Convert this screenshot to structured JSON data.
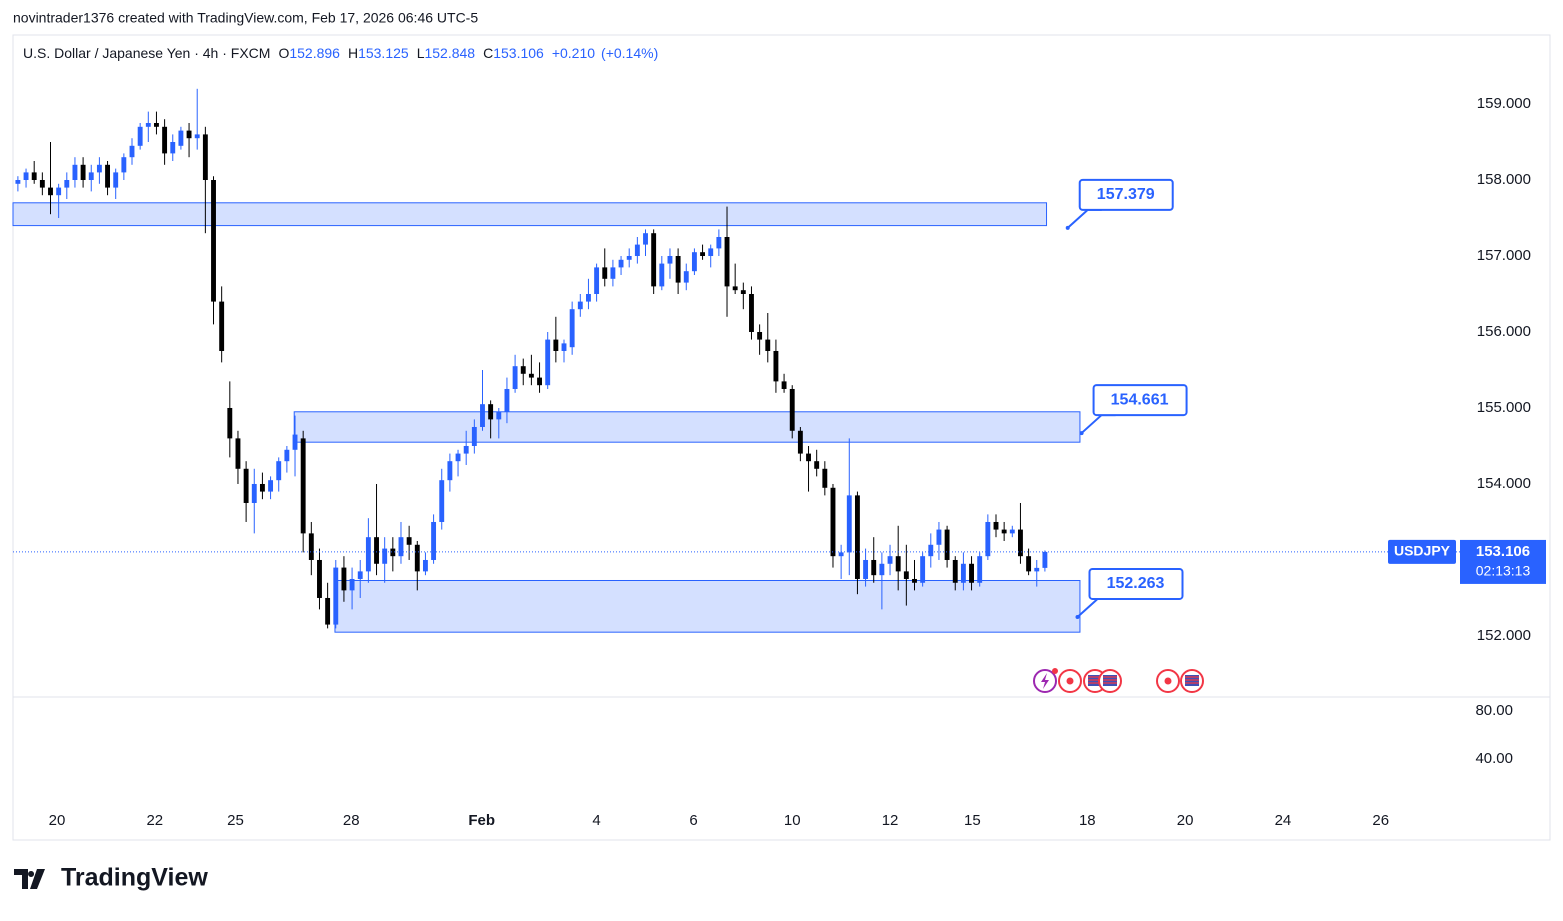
{
  "header": {
    "text": "novintrader1376 created with TradingView.com, Feb 17, 2026 06:46 UTC-5"
  },
  "footer": {
    "logo": "TradingView"
  },
  "chart_data": {
    "type": "candlestick",
    "legend": {
      "symbol": "U.S. Dollar / Japanese Yen · 4h · FXCM",
      "open_label": "O",
      "open": 152.896,
      "high_label": "H",
      "high": 153.125,
      "low_label": "L",
      "low": 152.848,
      "close_label": "C",
      "close": 153.106,
      "change": {
        "value": 0.21,
        "label": "+0.210"
      },
      "change_pct": {
        "value": 0.14,
        "label": "(+0.14%)"
      }
    },
    "up_color": "#2962ff",
    "down_color": "#000000",
    "xlim": [
      -0.6,
      175.7
    ],
    "xticks": [
      {
        "value": 4.8,
        "label": "20"
      },
      {
        "value": 16.8,
        "label": "22"
      },
      {
        "value": 26.7,
        "label": "25"
      },
      {
        "value": 40.9,
        "label": "28"
      },
      {
        "value": 56.9,
        "label": "Feb"
      },
      {
        "value": 71.0,
        "label": "4"
      },
      {
        "value": 82.9,
        "label": "6"
      },
      {
        "value": 95.0,
        "label": "10"
      },
      {
        "value": 107.0,
        "label": "12"
      },
      {
        "value": 117.1,
        "label": "15"
      },
      {
        "value": 131.2,
        "label": "18"
      },
      {
        "value": 143.2,
        "label": "20"
      },
      {
        "value": 155.2,
        "label": "24"
      },
      {
        "value": 167.2,
        "label": "26"
      }
    ],
    "ylim": [
      151.197,
      159.908
    ],
    "yticks": [
      {
        "value": 152,
        "label": "152.000"
      },
      {
        "value": 153,
        "label": "153.000"
      },
      {
        "value": 154,
        "label": "154.000"
      },
      {
        "value": 155,
        "label": "155.000"
      },
      {
        "value": 156,
        "label": "156.000"
      },
      {
        "value": 157,
        "label": "157.000"
      },
      {
        "value": 158,
        "label": "158.000"
      },
      {
        "value": 159,
        "label": "159.000"
      }
    ],
    "price_tag": {
      "symbol": "USDJPY",
      "price": 153.106,
      "countdown": "02:13:13"
    },
    "zones": [
      {
        "low": 157.4,
        "high": 157.7,
        "x_start": -0.6,
        "x_end": 126.2,
        "label": "157.379",
        "point": 157.37,
        "point_x": 128.8
      },
      {
        "low": 154.55,
        "high": 154.95,
        "x_start": 33.9,
        "x_end": 130.3,
        "label": "154.661",
        "point": 154.67,
        "point_x": 130.5
      },
      {
        "low": 152.05,
        "high": 152.73,
        "x_start": 38.9,
        "x_end": 130.3,
        "label": "152.263",
        "point": 152.25,
        "point_x": 130.0
      }
    ],
    "lower_pane": {
      "ylim": [
        1.67,
        91.67
      ],
      "yticks": [
        {
          "value": 80,
          "label": "80.00"
        },
        {
          "value": 40,
          "label": "40.00"
        }
      ]
    },
    "candles": [
      [
        157.95,
        158.05,
        157.85,
        158.0
      ],
      [
        158.0,
        158.15,
        157.9,
        158.1
      ],
      [
        158.1,
        158.25,
        157.95,
        158.0
      ],
      [
        158.0,
        158.1,
        157.8,
        157.9
      ],
      [
        157.9,
        158.5,
        157.55,
        157.8
      ],
      [
        157.8,
        157.95,
        157.5,
        157.9
      ],
      [
        157.9,
        158.1,
        157.75,
        158.0
      ],
      [
        158.0,
        158.3,
        157.9,
        158.2
      ],
      [
        158.2,
        158.3,
        157.9,
        158.0
      ],
      [
        158.0,
        158.2,
        157.85,
        158.1
      ],
      [
        158.1,
        158.3,
        157.95,
        158.2
      ],
      [
        158.2,
        158.25,
        157.8,
        157.9
      ],
      [
        157.9,
        158.15,
        157.75,
        158.1
      ],
      [
        158.1,
        158.35,
        158.0,
        158.3
      ],
      [
        158.3,
        158.55,
        158.2,
        158.45
      ],
      [
        158.45,
        158.75,
        158.4,
        158.7
      ],
      [
        158.7,
        158.9,
        158.5,
        158.75
      ],
      [
        158.75,
        158.9,
        158.6,
        158.7
      ],
      [
        158.7,
        158.8,
        158.2,
        158.35
      ],
      [
        158.35,
        158.6,
        158.25,
        158.5
      ],
      [
        158.45,
        158.7,
        158.4,
        158.65
      ],
      [
        158.65,
        158.75,
        158.3,
        158.55
      ],
      [
        158.55,
        159.2,
        158.4,
        158.6
      ],
      [
        158.6,
        158.7,
        157.3,
        158.0
      ],
      [
        158.0,
        158.05,
        156.1,
        156.4
      ],
      [
        156.4,
        156.6,
        155.6,
        155.75
      ],
      [
        155.0,
        155.35,
        154.35,
        154.6
      ],
      [
        154.6,
        154.7,
        154.0,
        154.2
      ],
      [
        154.2,
        154.3,
        153.5,
        153.75
      ],
      [
        153.75,
        154.2,
        153.35,
        154.0
      ],
      [
        154.0,
        154.15,
        153.8,
        153.9
      ],
      [
        153.9,
        154.1,
        153.8,
        154.05
      ],
      [
        154.05,
        154.35,
        153.9,
        154.3
      ],
      [
        154.3,
        154.5,
        154.15,
        154.45
      ],
      [
        154.45,
        154.9,
        154.1,
        154.65
      ],
      [
        154.6,
        154.7,
        153.1,
        153.35
      ],
      [
        153.35,
        153.5,
        152.8,
        153.0
      ],
      [
        153.0,
        153.15,
        152.35,
        152.5
      ],
      [
        152.5,
        152.7,
        152.1,
        152.15
      ],
      [
        152.15,
        153.0,
        152.1,
        152.9
      ],
      [
        152.9,
        153.05,
        152.45,
        152.6
      ],
      [
        152.6,
        152.9,
        152.35,
        152.75
      ],
      [
        152.75,
        153.0,
        152.5,
        152.85
      ],
      [
        152.85,
        153.55,
        152.7,
        153.3
      ],
      [
        153.3,
        154.0,
        152.8,
        152.95
      ],
      [
        152.95,
        153.3,
        152.7,
        153.15
      ],
      [
        153.15,
        153.3,
        152.85,
        153.05
      ],
      [
        153.05,
        153.5,
        152.95,
        153.3
      ],
      [
        153.3,
        153.45,
        153.0,
        153.2
      ],
      [
        153.2,
        153.25,
        152.6,
        152.85
      ],
      [
        152.85,
        153.1,
        152.8,
        153.0
      ],
      [
        153.0,
        153.6,
        152.95,
        153.5
      ],
      [
        153.5,
        154.2,
        153.4,
        154.05
      ],
      [
        154.05,
        154.4,
        153.9,
        154.3
      ],
      [
        154.3,
        154.45,
        154.1,
        154.4
      ],
      [
        154.4,
        154.7,
        154.25,
        154.5
      ],
      [
        154.5,
        154.85,
        154.4,
        154.75
      ],
      [
        154.75,
        155.5,
        154.7,
        155.05
      ],
      [
        155.05,
        155.1,
        154.6,
        154.85
      ],
      [
        154.85,
        155.0,
        154.6,
        154.95
      ],
      [
        154.95,
        155.4,
        154.8,
        155.25
      ],
      [
        155.25,
        155.7,
        155.2,
        155.55
      ],
      [
        155.55,
        155.65,
        155.3,
        155.45
      ],
      [
        155.45,
        155.7,
        155.3,
        155.4
      ],
      [
        155.4,
        155.6,
        155.2,
        155.3
      ],
      [
        155.3,
        156.0,
        155.25,
        155.9
      ],
      [
        155.9,
        156.2,
        155.6,
        155.75
      ],
      [
        155.75,
        155.9,
        155.6,
        155.85
      ],
      [
        155.8,
        156.4,
        155.7,
        156.3
      ],
      [
        156.3,
        156.5,
        156.2,
        156.4
      ],
      [
        156.4,
        156.7,
        156.3,
        156.5
      ],
      [
        156.5,
        156.9,
        156.4,
        156.85
      ],
      [
        156.85,
        157.1,
        156.6,
        156.7
      ],
      [
        156.7,
        156.95,
        156.6,
        156.85
      ],
      [
        156.85,
        157.0,
        156.75,
        156.95
      ],
      [
        156.95,
        157.1,
        156.85,
        157.0
      ],
      [
        157.0,
        157.25,
        156.9,
        157.15
      ],
      [
        157.15,
        157.35,
        157.0,
        157.3
      ],
      [
        157.3,
        157.35,
        156.5,
        156.6
      ],
      [
        156.6,
        157.0,
        156.55,
        156.9
      ],
      [
        156.9,
        157.1,
        156.7,
        157.0
      ],
      [
        157.0,
        157.1,
        156.5,
        156.65
      ],
      [
        156.65,
        156.9,
        156.55,
        156.8
      ],
      [
        156.8,
        157.1,
        156.75,
        157.05
      ],
      [
        157.05,
        157.15,
        156.95,
        157.0
      ],
      [
        157.0,
        157.15,
        156.85,
        157.1
      ],
      [
        157.1,
        157.35,
        157.0,
        157.25
      ],
      [
        157.25,
        157.65,
        156.2,
        156.6
      ],
      [
        156.6,
        156.9,
        156.5,
        156.55
      ],
      [
        156.55,
        156.65,
        156.3,
        156.5
      ],
      [
        156.5,
        156.6,
        155.9,
        156.0
      ],
      [
        156.0,
        156.1,
        155.7,
        155.9
      ],
      [
        155.9,
        156.25,
        155.6,
        155.75
      ],
      [
        155.75,
        155.9,
        155.2,
        155.35
      ],
      [
        155.35,
        155.45,
        155.2,
        155.25
      ],
      [
        155.25,
        155.3,
        154.6,
        154.7
      ],
      [
        154.7,
        154.75,
        154.3,
        154.4
      ],
      [
        154.4,
        154.5,
        153.9,
        154.3
      ],
      [
        154.3,
        154.45,
        154.1,
        154.2
      ],
      [
        154.2,
        154.3,
        153.85,
        153.95
      ],
      [
        153.95,
        154.0,
        152.9,
        153.05
      ],
      [
        153.05,
        153.2,
        152.75,
        153.1
      ],
      [
        153.1,
        154.6,
        152.8,
        153.85
      ],
      [
        153.85,
        153.9,
        152.55,
        152.75
      ],
      [
        152.75,
        153.15,
        152.65,
        153.0
      ],
      [
        153.0,
        153.3,
        152.7,
        152.8
      ],
      [
        152.8,
        153.1,
        152.35,
        152.95
      ],
      [
        152.95,
        153.2,
        152.8,
        153.05
      ],
      [
        153.05,
        153.45,
        152.6,
        152.85
      ],
      [
        152.85,
        153.2,
        152.4,
        152.75
      ],
      [
        152.75,
        153.0,
        152.6,
        152.7
      ],
      [
        152.7,
        153.1,
        152.65,
        153.05
      ],
      [
        153.05,
        153.35,
        152.9,
        153.2
      ],
      [
        153.2,
        153.5,
        153.0,
        153.4
      ],
      [
        153.4,
        153.45,
        152.9,
        153.0
      ],
      [
        153.0,
        153.05,
        152.6,
        152.7
      ],
      [
        152.7,
        153.1,
        152.6,
        152.95
      ],
      [
        152.95,
        153.05,
        152.6,
        152.7
      ],
      [
        152.7,
        153.1,
        152.65,
        153.05
      ],
      [
        153.05,
        153.6,
        153.0,
        153.5
      ],
      [
        153.5,
        153.6,
        153.3,
        153.4
      ],
      [
        153.4,
        153.5,
        153.25,
        153.35
      ],
      [
        153.35,
        153.45,
        153.3,
        153.4
      ],
      [
        153.4,
        153.75,
        152.95,
        153.05
      ],
      [
        153.05,
        153.15,
        152.8,
        152.85
      ],
      [
        152.85,
        153.0,
        152.65,
        152.896
      ],
      [
        152.896,
        153.125,
        152.848,
        153.106
      ]
    ]
  }
}
